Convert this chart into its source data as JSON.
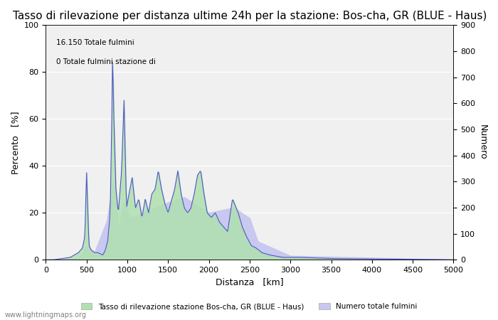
{
  "title": "Tasso di rilevazione per distanza ultime 24h per la stazione: Bos-cha, GR (BLUE - Haus)",
  "xlabel": "Distanza   [km]",
  "ylabel_left": "Percento   [%]",
  "ylabel_right": "Numero",
  "annotation_line1": "16.150 Totale fulmini",
  "annotation_line2": "0 Totale fulmini stazione di",
  "xlim": [
    0,
    5000
  ],
  "ylim_left": [
    0,
    100
  ],
  "ylim_right": [
    0,
    900
  ],
  "xticks": [
    0,
    500,
    1000,
    1500,
    2000,
    2500,
    3000,
    3500,
    4000,
    4500,
    5000
  ],
  "yticks_left": [
    0,
    20,
    40,
    60,
    80,
    100
  ],
  "yticks_right": [
    0,
    100,
    200,
    300,
    400,
    500,
    600,
    700,
    800,
    900
  ],
  "bg_color": "#f0f0f0",
  "fill_green_color": "#b0e0b0",
  "fill_blue_color": "#c8c8f0",
  "line_color": "#5555cc",
  "legend_label_green": "Tasso di rilevazione stazione Bos-cha, GR (BLUE - Haus)",
  "legend_label_blue": "Numero totale fulmini",
  "watermark": "www.lightningmaps.org",
  "title_fontsize": 11,
  "axis_fontsize": 9,
  "tick_fontsize": 8,
  "rate_key_x": [
    0,
    100,
    200,
    300,
    350,
    400,
    450,
    480,
    500,
    530,
    560,
    600,
    640,
    700,
    730,
    760,
    790,
    810,
    820,
    830,
    860,
    890,
    930,
    960,
    990,
    1020,
    1060,
    1100,
    1140,
    1180,
    1220,
    1260,
    1300,
    1340,
    1380,
    1420,
    1460,
    1500,
    1540,
    1580,
    1620,
    1660,
    1700,
    1740,
    1780,
    1820,
    1860,
    1900,
    1940,
    1980,
    2030,
    2080,
    2130,
    2180,
    2230,
    2290,
    2360,
    2410,
    2460,
    2520,
    2580,
    2650,
    2750,
    2900,
    3100,
    3500,
    4000,
    4500,
    5000
  ],
  "rate_key_y": [
    0,
    0,
    0.5,
    1,
    2,
    3,
    5,
    10,
    38,
    6,
    4,
    3,
    3,
    2,
    4,
    8,
    20,
    60,
    90,
    68,
    30,
    20,
    38,
    68,
    22,
    28,
    35,
    22,
    26,
    18,
    26,
    20,
    28,
    30,
    38,
    30,
    24,
    20,
    25,
    30,
    38,
    28,
    22,
    20,
    22,
    28,
    36,
    38,
    28,
    20,
    18,
    20,
    16,
    14,
    12,
    26,
    20,
    14,
    10,
    6,
    5,
    3,
    2,
    1,
    1,
    0.5,
    0.3,
    0.2,
    0
  ],
  "num_key_x": [
    0,
    400,
    500,
    600,
    750,
    825,
    900,
    950,
    1050,
    1200,
    1500,
    1700,
    2000,
    2300,
    2500,
    2600,
    3000,
    5000
  ],
  "num_key_y": [
    0,
    5,
    50,
    30,
    150,
    300,
    120,
    220,
    160,
    180,
    220,
    240,
    180,
    200,
    160,
    70,
    15,
    0
  ]
}
